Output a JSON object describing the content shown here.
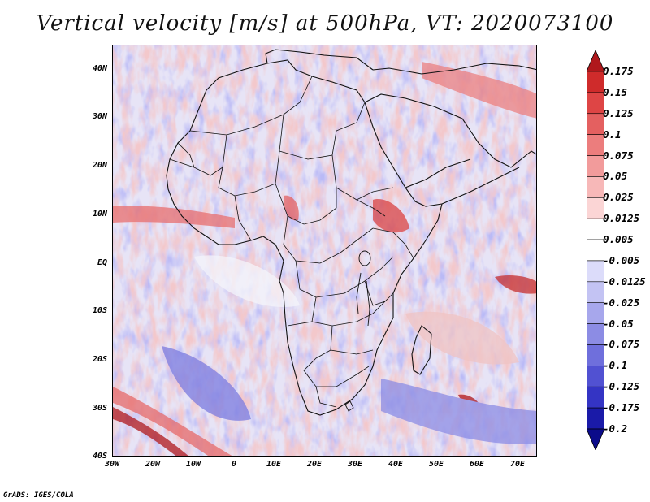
{
  "title": "Vertical velocity [m/s] at 500hPa, VT: 2020073100",
  "credit": "GrADS: IGES/COLA",
  "map": {
    "lon_range": [
      -30,
      75
    ],
    "lat_range": [
      -40,
      45
    ],
    "lat_labels": [
      "40N",
      "30N",
      "20N",
      "10N",
      "EQ",
      "10S",
      "20S",
      "30S",
      "40S"
    ],
    "lat_values": [
      40,
      30,
      20,
      10,
      0,
      -10,
      -20,
      -30,
      -40
    ],
    "lon_labels": [
      "30W",
      "20W",
      "10W",
      "0",
      "10E",
      "20E",
      "30E",
      "40E",
      "50E",
      "60E",
      "70E"
    ],
    "lon_values": [
      -30,
      -20,
      -10,
      0,
      10,
      20,
      30,
      40,
      50,
      60,
      70
    ]
  },
  "colorbar": {
    "labels": [
      "0.175",
      "0.15",
      "0.125",
      "0.1",
      "0.075",
      "0.05",
      "0.025",
      "0.0125",
      "0.005",
      "-0.005",
      "-0.0125",
      "-0.025",
      "-0.05",
      "-0.075",
      "-0.1",
      "-0.125",
      "-0.175",
      "-0.2"
    ],
    "colors": [
      "#b0181c",
      "#cf2b2b",
      "#de4545",
      "#e46060",
      "#ec7d7d",
      "#f29b9b",
      "#f7b8b8",
      "#fbd5d5",
      "#ffffff",
      "#ffffff",
      "#dcdcfa",
      "#c3c3f3",
      "#a7a7ec",
      "#8c8ce4",
      "#6f6fdc",
      "#5151d2",
      "#3434c4",
      "#1a1aa8",
      "#0b0b8a"
    ]
  }
}
